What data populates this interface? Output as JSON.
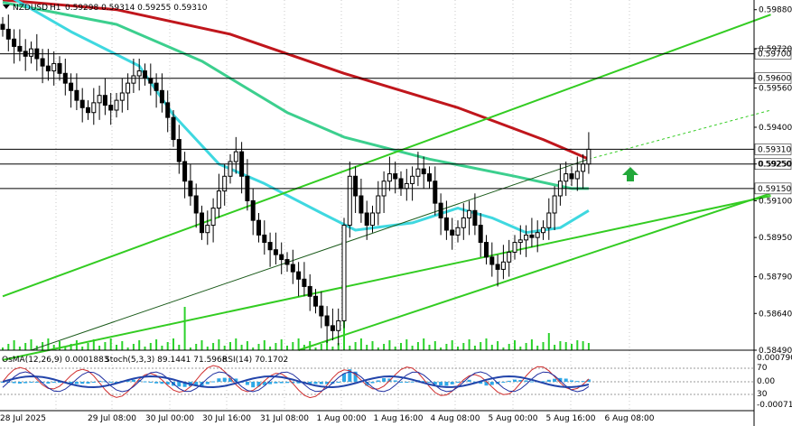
{
  "header": {
    "symbol": "NZDUSD",
    "timeframe": "H1",
    "ohlc": "0.59298 0.59314 0.59255 0.59310"
  },
  "indicator_header": {
    "osma": "OsMA(12,26,9) 0.0001883",
    "stoch": "Stoch(5,3,3) 89.1441 71.5968",
    "rsi": "RSI(14) 70.1702"
  },
  "colors": {
    "background": "#ffffff",
    "candle": "#000000",
    "ma_red": "#c0161c",
    "ma_teal": "#3ccf8e",
    "ma_cyan": "#3fd8e0",
    "channel": "#33cc22",
    "volume": "#2bd22b",
    "hist": "#2fa8e6",
    "arrow": "#22a83a",
    "stoch_main": "#d03030",
    "stoch_signal": "#1f2ea0",
    "rsi": "#2244aa"
  },
  "chart_data": {
    "type": "candlestick",
    "symbol": "NZDUSD",
    "timeframe": "H1",
    "y_range": [
      0.5849,
      0.5989
    ],
    "price_ticks": [
      "0.59880",
      "0.59720",
      "0.59560",
      "0.59400",
      "0.59250",
      "0.59100",
      "0.58950",
      "0.58790",
      "0.58640",
      "0.58490"
    ],
    "horizontal_levels": [
      "0.59700",
      "0.59600",
      "0.59310",
      "0.59250",
      "0.59150"
    ],
    "time_labels": [
      "28 Jul 2025",
      "29 Jul 08:00",
      "30 Jul 00:00",
      "30 Jul 16:00",
      "31 Jul 08:00",
      "1 Aug 00:00",
      "1 Aug 16:00",
      "4 Aug 08:00",
      "5 Aug 00:00",
      "5 Aug 16:00",
      "6 Aug 08:00"
    ],
    "closes": [
      0.598,
      0.5976,
      0.5973,
      0.5971,
      0.5969,
      0.5972,
      0.5968,
      0.5965,
      0.5963,
      0.5966,
      0.5962,
      0.5958,
      0.5955,
      0.5951,
      0.5948,
      0.5946,
      0.595,
      0.5953,
      0.5949,
      0.5947,
      0.5951,
      0.5954,
      0.5958,
      0.5961,
      0.5963,
      0.596,
      0.5958,
      0.5955,
      0.595,
      0.5944,
      0.5935,
      0.5926,
      0.5918,
      0.5912,
      0.5905,
      0.5897,
      0.59,
      0.5907,
      0.5914,
      0.592,
      0.5926,
      0.593,
      0.592,
      0.591,
      0.5902,
      0.5896,
      0.5893,
      0.589,
      0.5888,
      0.5886,
      0.5884,
      0.5881,
      0.5878,
      0.5875,
      0.5871,
      0.5867,
      0.5863,
      0.5859,
      0.5857,
      0.5861,
      0.59,
      0.592,
      0.5912,
      0.5905,
      0.59,
      0.5905,
      0.5912,
      0.5918,
      0.5921,
      0.5919,
      0.5915,
      0.5917,
      0.592,
      0.5923,
      0.5921,
      0.5918,
      0.5909,
      0.5903,
      0.5898,
      0.5896,
      0.5899,
      0.5903,
      0.5906,
      0.59,
      0.5893,
      0.5887,
      0.5884,
      0.5882,
      0.5885,
      0.5889,
      0.5893,
      0.5894,
      0.5896,
      0.5895,
      0.5897,
      0.5899,
      0.5905,
      0.5912,
      0.5918,
      0.5921,
      0.5919,
      0.5922,
      0.5925,
      0.5931
    ],
    "moving_averages": [
      {
        "color_key": "ma_red",
        "values": [
          [
            0,
            0.5992
          ],
          [
            20,
            0.5988
          ],
          [
            40,
            0.5978
          ],
          [
            60,
            0.5962
          ],
          [
            80,
            0.5948
          ],
          [
            95,
            0.5935
          ],
          [
            100,
            0.593
          ],
          [
            103,
            0.5927
          ]
        ]
      },
      {
        "color_key": "ma_teal",
        "values": [
          [
            0,
            0.5991
          ],
          [
            20,
            0.5982
          ],
          [
            35,
            0.5967
          ],
          [
            50,
            0.5946
          ],
          [
            60,
            0.5936
          ],
          [
            75,
            0.5927
          ],
          [
            90,
            0.592
          ],
          [
            100,
            0.5915
          ],
          [
            103,
            0.5915
          ]
        ]
      },
      {
        "color_key": "ma_cyan",
        "values": [
          [
            0,
            0.5995
          ],
          [
            12,
            0.5979
          ],
          [
            24,
            0.5965
          ],
          [
            30,
            0.5945
          ],
          [
            38,
            0.5925
          ],
          [
            46,
            0.5917
          ],
          [
            56,
            0.5905
          ],
          [
            62,
            0.5898
          ],
          [
            72,
            0.5901
          ],
          [
            80,
            0.5907
          ],
          [
            86,
            0.5903
          ],
          [
            92,
            0.5897
          ],
          [
            98,
            0.5899
          ],
          [
            103,
            0.5906
          ]
        ]
      }
    ],
    "channel_lines": [
      [
        [
          0,
          0.5871
        ],
        [
          135,
          0.5986
        ]
      ],
      [
        [
          0,
          0.5845
        ],
        [
          135,
          0.5912
        ]
      ],
      [
        [
          52,
          0.5849
        ],
        [
          135,
          0.5913
        ]
      ]
    ],
    "channel_extension": [
      [
        103,
        0.5927
      ],
      [
        135,
        0.5947
      ]
    ],
    "arrow_signal": {
      "direction": "up",
      "index": 108
    }
  }
}
